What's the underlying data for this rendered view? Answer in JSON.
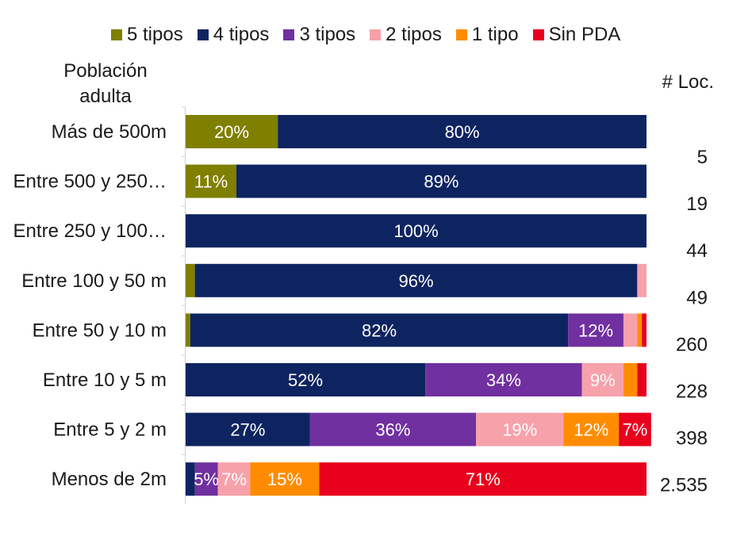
{
  "chart_data": {
    "type": "bar",
    "orientation": "horizontal",
    "stacked": true,
    "normalized_percent": true,
    "y_axis_title": "Población adulta",
    "right_column_title": "# Loc.",
    "categories": [
      "Más de 500m",
      "Entre 500 y 250…",
      "Entre 250 y 100…",
      "Entre 100 y 50 m",
      "Entre 50 y 10 m",
      "Entre 10 y 5 m",
      "Entre 5 y 2 m",
      "Menos de 2m"
    ],
    "loc_counts": [
      "5",
      "19",
      "44",
      "49",
      "260",
      "228",
      "398",
      "2.535"
    ],
    "series": [
      {
        "name": "5 tipos",
        "color": "#7f7f00",
        "values": [
          20,
          11,
          0,
          2,
          1,
          0,
          0,
          0
        ]
      },
      {
        "name": "4 tipos",
        "color": "#0e2461",
        "values": [
          80,
          89,
          100,
          96,
          82,
          52,
          27,
          2
        ]
      },
      {
        "name": "3 tipos",
        "color": "#7030a0",
        "values": [
          0,
          0,
          0,
          0,
          12,
          34,
          36,
          5
        ]
      },
      {
        "name": "2 tipos",
        "color": "#f7a1ab",
        "values": [
          0,
          0,
          0,
          2,
          3,
          9,
          19,
          7
        ]
      },
      {
        "name": "1 tipo",
        "color": "#ff8c00",
        "values": [
          0,
          0,
          0,
          0,
          1,
          3,
          12,
          15
        ]
      },
      {
        "name": "Sin PDA",
        "color": "#e8001c",
        "values": [
          0,
          0,
          0,
          0,
          1,
          2,
          7,
          71
        ]
      }
    ],
    "data_labels": [
      [
        "20%",
        "80%",
        "",
        "",
        "",
        ""
      ],
      [
        "11%",
        "89%",
        "",
        "",
        "",
        ""
      ],
      [
        "",
        "100%",
        "",
        "",
        "",
        ""
      ],
      [
        "",
        "96%",
        "",
        "",
        "",
        ""
      ],
      [
        "",
        "82%",
        "12%",
        "",
        "",
        ""
      ],
      [
        "",
        "52%",
        "34%",
        "9%",
        "",
        ""
      ],
      [
        "",
        "27%",
        "36%",
        "19%",
        "12%",
        "7%"
      ],
      [
        "",
        "",
        "5%",
        "7%",
        "15%",
        "71%"
      ]
    ],
    "xlim": [
      0,
      100
    ],
    "grid": false,
    "legend_position": "top"
  }
}
